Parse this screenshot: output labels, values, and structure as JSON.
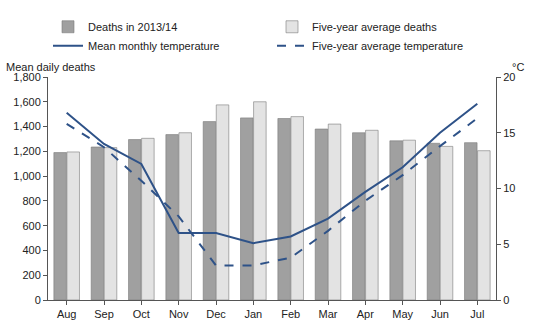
{
  "chart_data": {
    "type": "bar",
    "categories": [
      "Aug",
      "Sep",
      "Oct",
      "Nov",
      "Dec",
      "Jan",
      "Feb",
      "Mar",
      "Apr",
      "May",
      "Jun",
      "Jul"
    ],
    "series": [
      {
        "name": "Deaths in 2013/14",
        "type": "bar",
        "color": "#a0a0a0",
        "values": [
          1190,
          1235,
          1295,
          1335,
          1440,
          1470,
          1465,
          1380,
          1350,
          1285,
          1265,
          1270
        ]
      },
      {
        "name": "Five-year average deaths",
        "type": "bar",
        "color": "#e3e3e3",
        "values": [
          1195,
          1230,
          1305,
          1350,
          1575,
          1600,
          1480,
          1420,
          1370,
          1290,
          1240,
          1205
        ]
      },
      {
        "name": "Mean monthly temperature",
        "type": "line",
        "axis": "y2",
        "color": "#2e5288",
        "line_style": "solid",
        "values": [
          16.8,
          14.0,
          12.2,
          6.0,
          6.0,
          5.1,
          5.7,
          7.3,
          9.7,
          11.9,
          15.0,
          17.6
        ]
      },
      {
        "name": "Five-year average temperature",
        "type": "line",
        "axis": "y2",
        "color": "#2e5288",
        "line_style": "dashed",
        "values": [
          15.8,
          13.7,
          10.7,
          7.5,
          3.1,
          3.1,
          3.8,
          6.2,
          8.9,
          11.2,
          13.8,
          16.3
        ]
      }
    ],
    "y_label": "Mean daily deaths",
    "y2_label": "°C",
    "ylim": [
      0,
      1800
    ],
    "yticks": [
      0,
      200,
      400,
      600,
      800,
      {
        "value": 1000,
        "label": "1,000"
      },
      {
        "value": 1200,
        "label": "1,200"
      },
      {
        "value": 1400,
        "label": "1,400"
      },
      {
        "value": 1600,
        "label": "1,600"
      },
      {
        "value": 1800,
        "label": "1,800"
      }
    ],
    "y2lim": [
      0,
      20
    ],
    "y2ticks": [
      0,
      5,
      10,
      15,
      20
    ],
    "grid": false,
    "legend": "top"
  }
}
